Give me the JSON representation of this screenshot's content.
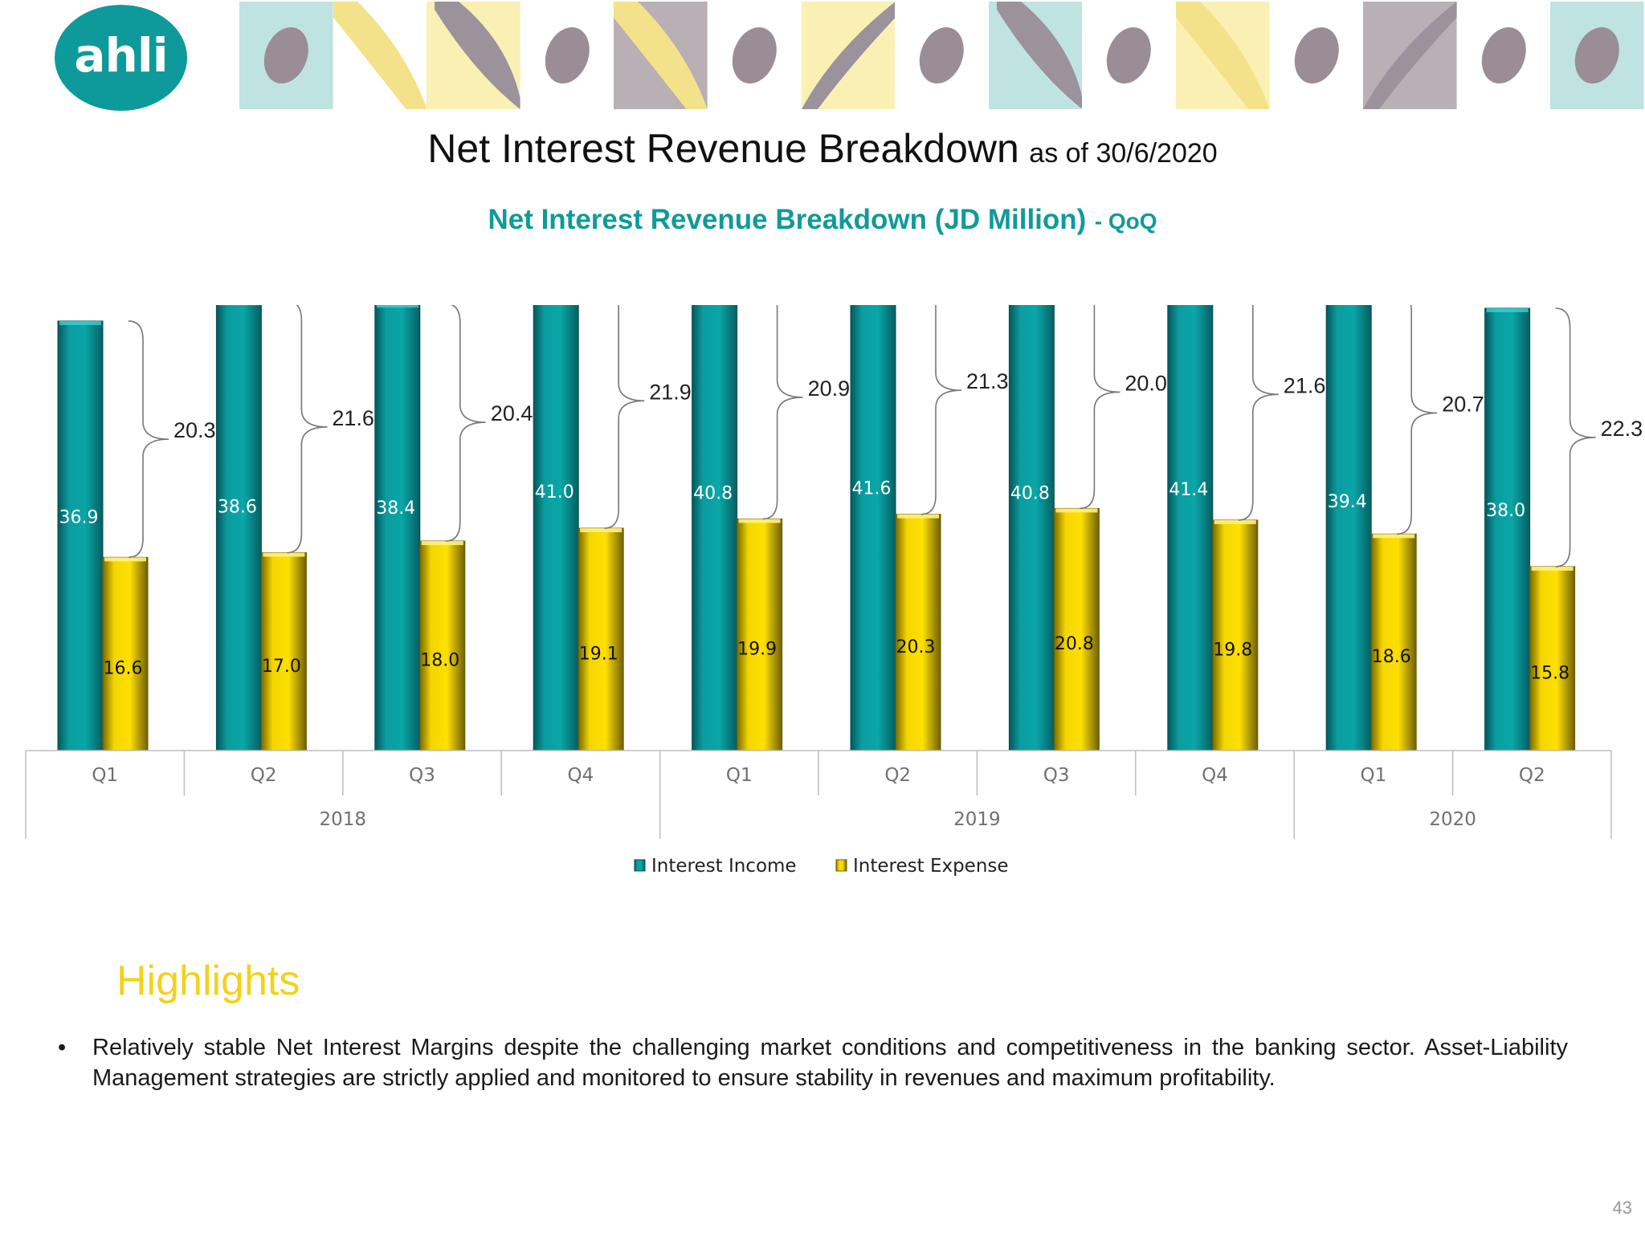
{
  "logo": {
    "text": "ahli",
    "color": "#0e9a9a"
  },
  "header": {
    "title": "Net Interest Revenue Breakdown",
    "title_suffix": "as of 30/6/2020",
    "subtitle": "Net Interest Revenue Breakdown (JD Million)",
    "subtitle_suffix": "- QoQ"
  },
  "colors": {
    "income": "#0a9fa2",
    "expense": "#f6d800",
    "highlights": "#f2d21b",
    "subtitle": "#109a9a"
  },
  "chart_data": {
    "type": "bar",
    "title": "Net Interest Revenue Breakdown (JD Million) - QoQ",
    "categories": [
      "Q1",
      "Q2",
      "Q3",
      "Q4",
      "Q1",
      "Q2",
      "Q3",
      "Q4",
      "Q1",
      "Q2"
    ],
    "groups": [
      {
        "label": "2018",
        "count": 4
      },
      {
        "label": "2019",
        "count": 4
      },
      {
        "label": "2020",
        "count": 2
      }
    ],
    "series": [
      {
        "name": "Interest Income",
        "color": "#0a9fa2",
        "values": [
          36.9,
          38.6,
          38.4,
          41.0,
          40.8,
          41.6,
          40.8,
          41.4,
          39.4,
          38.0
        ]
      },
      {
        "name": "Interest Expense",
        "color": "#f6d800",
        "values": [
          16.6,
          17.0,
          18.0,
          19.1,
          19.9,
          20.3,
          20.8,
          19.8,
          18.6,
          15.8
        ]
      }
    ],
    "net_interest_revenue": [
      20.3,
      21.6,
      20.4,
      21.9,
      20.9,
      21.3,
      20.0,
      21.6,
      20.7,
      22.3
    ],
    "ylim": [
      0,
      45
    ],
    "legend_position": "bottom",
    "xlabel": "",
    "ylabel": ""
  },
  "highlights": {
    "title": "Highlights",
    "bullets": [
      "Relatively stable Net Interest Margins despite the challenging market conditions and competitiveness in the banking sector. Asset-Liability Management strategies are strictly applied and monitored to ensure stability in revenues and maximum profitability."
    ]
  },
  "page_number": "43"
}
